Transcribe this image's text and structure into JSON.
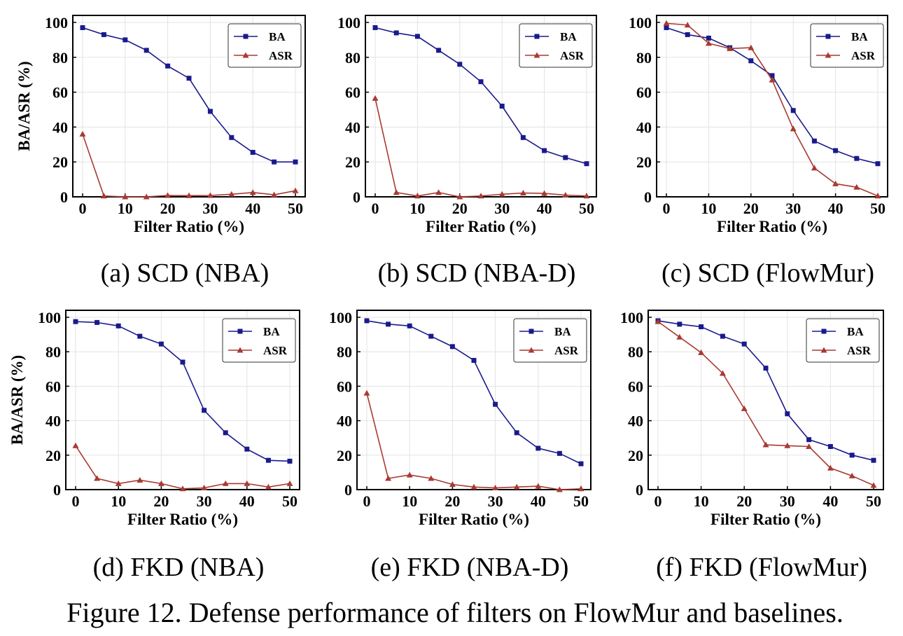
{
  "figure_caption": "Figure 12. Defense performance of filters on FlowMur and baselines.",
  "colors": {
    "BA": "#1a1a8c",
    "ASR": "#a83a32",
    "grid": "#e3e3e3",
    "axis": "#000000"
  },
  "chart_data": [
    {
      "type": "line",
      "caption": "(a) SCD (NBA)",
      "xlabel": "Filter Ratio (%)",
      "ylabel": "BA/ASR (%)",
      "x": [
        0,
        5,
        10,
        15,
        20,
        25,
        30,
        35,
        40,
        45,
        50
      ],
      "xticks": [
        0,
        10,
        20,
        30,
        40,
        50
      ],
      "yticks": [
        0,
        20,
        40,
        60,
        80,
        100
      ],
      "ylim": [
        0,
        100
      ],
      "grid": true,
      "legend": "top-right",
      "series": [
        {
          "name": "BA",
          "marker": "square",
          "values": [
            97,
            93,
            90,
            84,
            75,
            68,
            49,
            34,
            25.5,
            20,
            20
          ]
        },
        {
          "name": "ASR",
          "marker": "triangle",
          "values": [
            36,
            0.5,
            0,
            0,
            0.8,
            0.7,
            0.8,
            1.5,
            2.5,
            1.2,
            3.5
          ]
        }
      ]
    },
    {
      "type": "line",
      "caption": "(b) SCD (NBA-D)",
      "xlabel": "Filter Ratio (%)",
      "ylabel": "",
      "x": [
        0,
        5,
        10,
        15,
        20,
        25,
        30,
        35,
        40,
        45,
        50
      ],
      "xticks": [
        0,
        10,
        20,
        30,
        40,
        50
      ],
      "yticks": [
        0,
        20,
        40,
        60,
        80,
        100
      ],
      "ylim": [
        0,
        100
      ],
      "grid": true,
      "legend": "top-right",
      "series": [
        {
          "name": "BA",
          "marker": "square",
          "values": [
            97,
            94,
            92,
            84,
            76,
            66,
            52,
            34,
            26.5,
            22.5,
            19
          ]
        },
        {
          "name": "ASR",
          "marker": "triangle",
          "values": [
            56.5,
            2.5,
            0.5,
            2.5,
            0,
            0.5,
            1.5,
            2.2,
            2,
            1,
            0.5
          ]
        }
      ]
    },
    {
      "type": "line",
      "caption": "(c) SCD (FlowMur)",
      "xlabel": "Filter Ratio (%)",
      "ylabel": "",
      "x": [
        0,
        5,
        10,
        15,
        20,
        25,
        30,
        35,
        40,
        45,
        50
      ],
      "xticks": [
        0,
        10,
        20,
        30,
        40,
        50
      ],
      "yticks": [
        0,
        20,
        40,
        60,
        80,
        100
      ],
      "ylim": [
        0,
        100
      ],
      "grid": true,
      "legend": "top-right",
      "series": [
        {
          "name": "BA",
          "marker": "square",
          "values": [
            97,
            93,
            91,
            85.5,
            78,
            69.5,
            49.5,
            32,
            26.5,
            22,
            19
          ]
        },
        {
          "name": "ASR",
          "marker": "triangle",
          "values": [
            99.5,
            98.5,
            88,
            85,
            85.5,
            67,
            39,
            16.5,
            7.5,
            5.5,
            0.5
          ]
        }
      ]
    },
    {
      "type": "line",
      "caption": "(d) FKD (NBA)",
      "xlabel": "Filter Ratio (%)",
      "ylabel": "BA/ASR (%)",
      "x": [
        0,
        5,
        10,
        15,
        20,
        25,
        30,
        35,
        40,
        45,
        50
      ],
      "xticks": [
        0,
        10,
        20,
        30,
        40,
        50
      ],
      "yticks": [
        0,
        20,
        40,
        60,
        80,
        100
      ],
      "ylim": [
        0,
        100
      ],
      "grid": true,
      "legend": "top-right",
      "series": [
        {
          "name": "BA",
          "marker": "square",
          "values": [
            97.5,
            97,
            95,
            89,
            84.5,
            74,
            46,
            33,
            23.5,
            17,
            16.5
          ]
        },
        {
          "name": "ASR",
          "marker": "triangle",
          "values": [
            25.5,
            6.5,
            3.5,
            5.5,
            3.5,
            0.5,
            1,
            3.5,
            3.5,
            1.5,
            3.5
          ]
        }
      ]
    },
    {
      "type": "line",
      "caption": "(e) FKD (NBA-D)",
      "xlabel": "Filter Ratio (%)",
      "ylabel": "",
      "x": [
        0,
        5,
        10,
        15,
        20,
        25,
        30,
        35,
        40,
        45,
        50
      ],
      "xticks": [
        0,
        10,
        20,
        30,
        40,
        50
      ],
      "yticks": [
        0,
        20,
        40,
        60,
        80,
        100
      ],
      "ylim": [
        0,
        100
      ],
      "grid": true,
      "legend": "top-right",
      "series": [
        {
          "name": "BA",
          "marker": "square",
          "values": [
            98,
            96,
            95,
            89,
            83,
            75,
            49.5,
            33,
            24,
            21,
            15
          ]
        },
        {
          "name": "ASR",
          "marker": "triangle",
          "values": [
            56,
            6.5,
            8.5,
            6.5,
            3,
            1.5,
            1,
            1.5,
            2,
            0,
            0.5
          ]
        }
      ]
    },
    {
      "type": "line",
      "caption": "(f) FKD (FlowMur)",
      "xlabel": "Filter Ratio (%)",
      "ylabel": "",
      "x": [
        0,
        5,
        10,
        15,
        20,
        25,
        30,
        35,
        40,
        45,
        50
      ],
      "xticks": [
        0,
        10,
        20,
        30,
        40,
        50
      ],
      "yticks": [
        0,
        20,
        40,
        60,
        80,
        100
      ],
      "ylim": [
        0,
        100
      ],
      "grid": true,
      "legend": "top-right",
      "series": [
        {
          "name": "BA",
          "marker": "square",
          "values": [
            98,
            96,
            94.5,
            89,
            84.5,
            70.5,
            44,
            29,
            25,
            20,
            17
          ]
        },
        {
          "name": "ASR",
          "marker": "triangle",
          "values": [
            97.5,
            88.5,
            79.5,
            67.5,
            47,
            26,
            25.5,
            25,
            12.5,
            8,
            2.5
          ]
        }
      ]
    }
  ]
}
